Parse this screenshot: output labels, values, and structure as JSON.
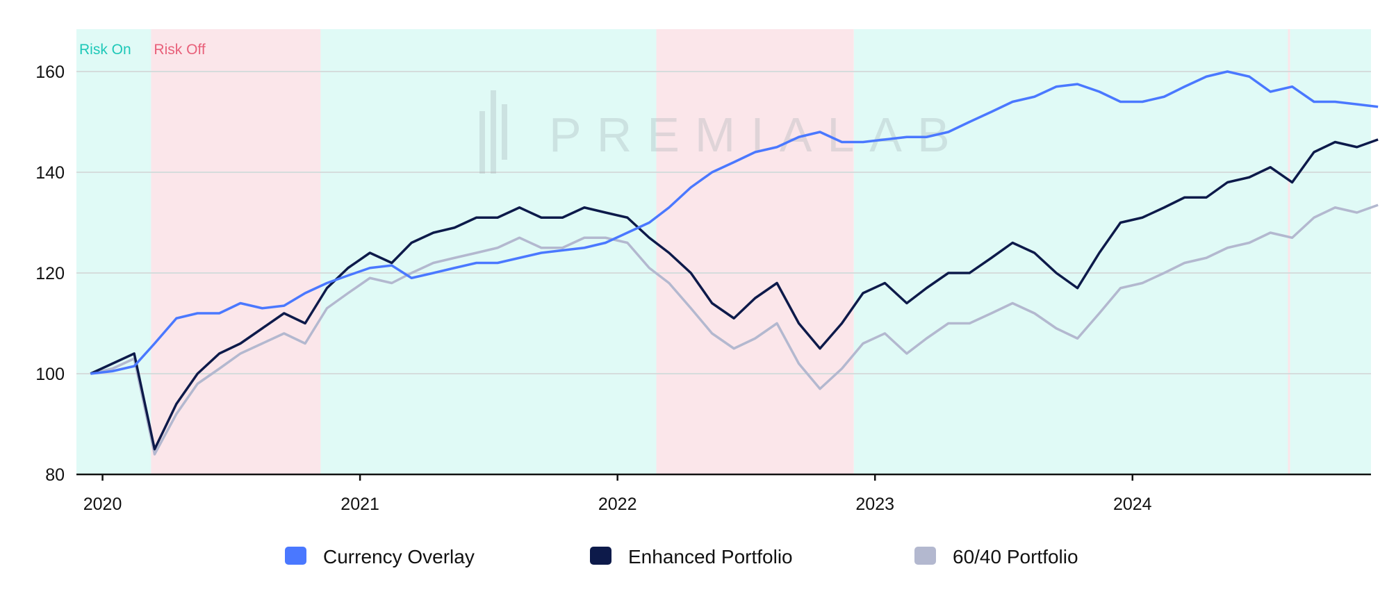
{
  "chart_data": {
    "type": "line",
    "title": "",
    "xlabel": "",
    "ylabel": "",
    "xlim": [
      "2019-11-25",
      "2024-12-05"
    ],
    "ylim": [
      80,
      165
    ],
    "x_ticks": [
      "2020",
      "2021",
      "2022",
      "2023",
      "2024"
    ],
    "y_ticks": [
      80,
      100,
      120,
      140,
      160
    ],
    "grid": "horizontal",
    "legend_position": "bottom",
    "watermark": "PREMIALAB",
    "regimes": [
      {
        "label": "Risk On",
        "start": "2019-11-25",
        "end": "2020-03-10",
        "color": "#e0faf6"
      },
      {
        "label": "Risk Off",
        "start": "2020-03-10",
        "end": "2020-11-06",
        "color": "#fbe6ea"
      },
      {
        "label": "",
        "start": "2020-11-06",
        "end": "2022-02-25",
        "color": "#e0faf6"
      },
      {
        "label": "",
        "start": "2022-02-25",
        "end": "2022-12-02",
        "color": "#fbe6ea"
      },
      {
        "label": "",
        "start": "2022-12-02",
        "end": "2024-08-09",
        "color": "#e0faf6"
      },
      {
        "label": "",
        "start": "2024-08-09",
        "end": "2024-08-12",
        "color": "#fbe6ea"
      },
      {
        "label": "",
        "start": "2024-08-12",
        "end": "2024-12-05",
        "color": "#e0faf6"
      }
    ],
    "regime_label_colors": {
      "Risk On": "#1ec8b8",
      "Risk Off": "#e8607a"
    },
    "x": [
      "2019-12",
      "2020-01",
      "2020-02",
      "2020-03",
      "2020-04",
      "2020-05",
      "2020-06",
      "2020-07",
      "2020-08",
      "2020-09",
      "2020-10",
      "2020-11",
      "2020-12",
      "2021-01",
      "2021-02",
      "2021-03",
      "2021-04",
      "2021-05",
      "2021-06",
      "2021-07",
      "2021-08",
      "2021-09",
      "2021-10",
      "2021-11",
      "2021-12",
      "2022-01",
      "2022-02",
      "2022-03",
      "2022-04",
      "2022-05",
      "2022-06",
      "2022-07",
      "2022-08",
      "2022-09",
      "2022-10",
      "2022-11",
      "2022-12",
      "2023-01",
      "2023-02",
      "2023-03",
      "2023-04",
      "2023-05",
      "2023-06",
      "2023-07",
      "2023-08",
      "2023-09",
      "2023-10",
      "2023-11",
      "2023-12",
      "2024-01",
      "2024-02",
      "2024-03",
      "2024-04",
      "2024-05",
      "2024-06",
      "2024-07",
      "2024-08",
      "2024-09",
      "2024-10",
      "2024-11",
      "2024-12"
    ],
    "series": [
      {
        "name": "Currency Overlay",
        "color": "#4a78ff",
        "values": [
          100,
          100.5,
          101.5,
          106,
          111,
          112,
          112,
          114,
          113,
          113.5,
          116,
          118,
          119.5,
          121,
          121.5,
          119,
          120,
          121,
          122,
          122,
          123,
          124,
          124.5,
          125,
          126,
          128,
          130,
          133,
          137,
          140,
          142,
          144,
          145,
          147,
          148,
          146,
          146,
          146.5,
          147,
          147,
          148,
          150,
          152,
          154,
          155,
          157,
          157.5,
          156,
          154,
          154,
          155,
          157,
          159,
          160,
          159,
          156,
          157,
          154,
          154,
          153.5,
          153
        ]
      },
      {
        "name": "Enhanced Portfolio",
        "color": "#0d1a4a",
        "values": [
          100,
          102,
          104,
          85,
          94,
          100,
          104,
          106,
          109,
          112,
          110,
          117,
          121,
          124,
          122,
          126,
          128,
          129,
          131,
          131,
          133,
          131,
          131,
          133,
          132,
          131,
          127,
          124,
          120,
          114,
          111,
          115,
          118,
          110,
          105,
          110,
          116,
          118,
          114,
          117,
          120,
          120,
          123,
          126,
          124,
          120,
          117,
          124,
          130,
          131,
          133,
          135,
          135,
          138,
          139,
          141,
          138,
          144,
          146,
          145,
          146.5
        ]
      },
      {
        "name": "60/40 Portfolio",
        "color": "#b3b8cf",
        "values": [
          100,
          101,
          103,
          84,
          92,
          98,
          101,
          104,
          106,
          108,
          106,
          113,
          116,
          119,
          118,
          120,
          122,
          123,
          124,
          125,
          127,
          125,
          125,
          127,
          127,
          126,
          121,
          118,
          113,
          108,
          105,
          107,
          110,
          102,
          97,
          101,
          106,
          108,
          104,
          107,
          110,
          110,
          112,
          114,
          112,
          109,
          107,
          112,
          117,
          118,
          120,
          122,
          123,
          125,
          126,
          128,
          127,
          131,
          133,
          132,
          133.5
        ]
      }
    ]
  }
}
